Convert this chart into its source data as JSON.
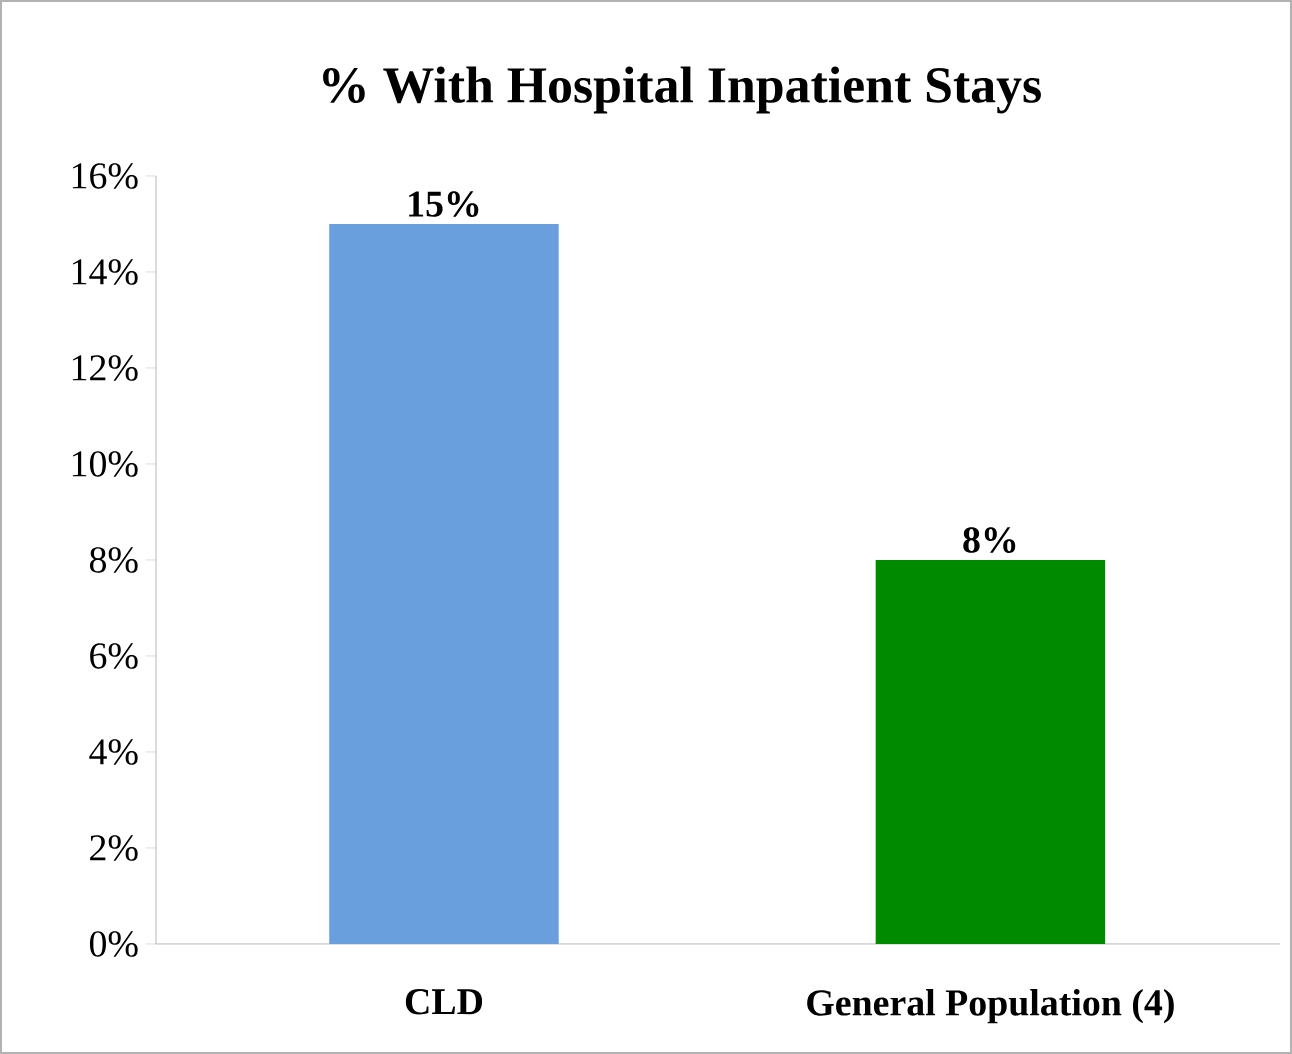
{
  "chart_data": {
    "type": "bar",
    "title": "% With Hospital Inpatient Stays",
    "categories": [
      "CLD",
      "General Population (4)"
    ],
    "values": [
      15,
      8
    ],
    "colors": [
      "#6a9fde",
      "#008a00"
    ],
    "value_labels": [
      "15%",
      "8%"
    ],
    "ylim": [
      0,
      16
    ],
    "yticks": [
      {
        "value": 0,
        "label": "0%"
      },
      {
        "value": 2,
        "label": "2%"
      },
      {
        "value": 4,
        "label": "4%"
      },
      {
        "value": 6,
        "label": "6%"
      },
      {
        "value": 8,
        "label": "8%"
      },
      {
        "value": 10,
        "label": "10%"
      },
      {
        "value": 12,
        "label": "12%"
      },
      {
        "value": 14,
        "label": "14%"
      },
      {
        "value": 16,
        "label": "16%"
      }
    ],
    "grid": false
  }
}
